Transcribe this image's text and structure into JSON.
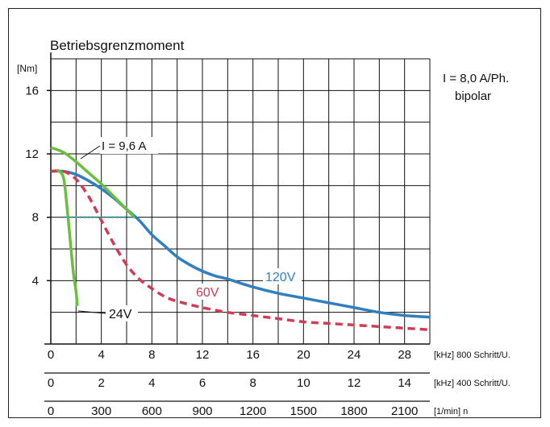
{
  "chart_data": {
    "type": "line",
    "title": "Betriebsgrenzmoment",
    "ylabel": "[Nm]",
    "ylim": [
      0,
      18
    ],
    "yticks": [
      4,
      8,
      12,
      16
    ],
    "xlim": [
      0,
      30
    ],
    "x_axes": [
      {
        "ticks": [
          0,
          4,
          8,
          12,
          16,
          20,
          24,
          28
        ],
        "unit": "[kHz] 800 Schritt/U."
      },
      {
        "ticks": [
          0,
          2,
          4,
          6,
          8,
          10,
          12,
          14
        ],
        "unit": "[kHz] 400 Schritt/U."
      },
      {
        "ticks": [
          0,
          300,
          600,
          900,
          1200,
          1500,
          1800,
          2100
        ],
        "unit": "[1/min] n"
      }
    ],
    "annotations": {
      "current": "I = 8,0 A/Ph.",
      "mode": "bipolar",
      "boost_current": "I = 9,6 A"
    },
    "grid": true,
    "colors": {
      "v120": "#2f7fc1",
      "v60": "#d33a55",
      "v24": "#6abf3c",
      "boost": "#6abf3c",
      "marker": "#2fb4b4"
    },
    "series": [
      {
        "name": "120V",
        "style": "solid",
        "x": [
          0,
          1,
          2,
          3,
          4,
          5,
          6,
          7,
          8,
          9,
          10,
          11,
          12,
          13,
          14,
          16,
          18,
          20,
          22,
          24,
          26,
          28,
          30
        ],
        "y": [
          10.9,
          10.9,
          10.7,
          10.3,
          9.8,
          9.2,
          8.5,
          7.8,
          6.9,
          6.2,
          5.5,
          5.0,
          4.6,
          4.3,
          4.1,
          3.6,
          3.2,
          2.9,
          2.6,
          2.3,
          2.0,
          1.8,
          1.7
        ]
      },
      {
        "name": "60V",
        "style": "dashed",
        "x": [
          0,
          1,
          2,
          3,
          4,
          5,
          6,
          7,
          8,
          9,
          10,
          12,
          14,
          16,
          18,
          20,
          22,
          24,
          26,
          28,
          30
        ],
        "y": [
          10.9,
          10.9,
          10.4,
          9.3,
          7.8,
          6.3,
          5.0,
          4.1,
          3.5,
          3.0,
          2.7,
          2.3,
          2.0,
          1.8,
          1.6,
          1.4,
          1.3,
          1.2,
          1.1,
          1.0,
          0.9
        ]
      },
      {
        "name": "24V",
        "style": "solid",
        "x": [
          0.5,
          1.0,
          1.3,
          1.6,
          1.8,
          2.0,
          2.1
        ],
        "y": [
          11.0,
          10.5,
          8.5,
          6.0,
          4.4,
          3.3,
          2.4
        ]
      },
      {
        "name": "I = 9,6 A",
        "style": "solid",
        "x": [
          0,
          1,
          2,
          3,
          4,
          5,
          6,
          6.6
        ],
        "y": [
          12.4,
          12.1,
          11.5,
          10.8,
          10.1,
          9.3,
          8.5,
          8.0
        ]
      }
    ],
    "marker_line": {
      "x": [
        1,
        6.6
      ],
      "y": 8
    }
  }
}
